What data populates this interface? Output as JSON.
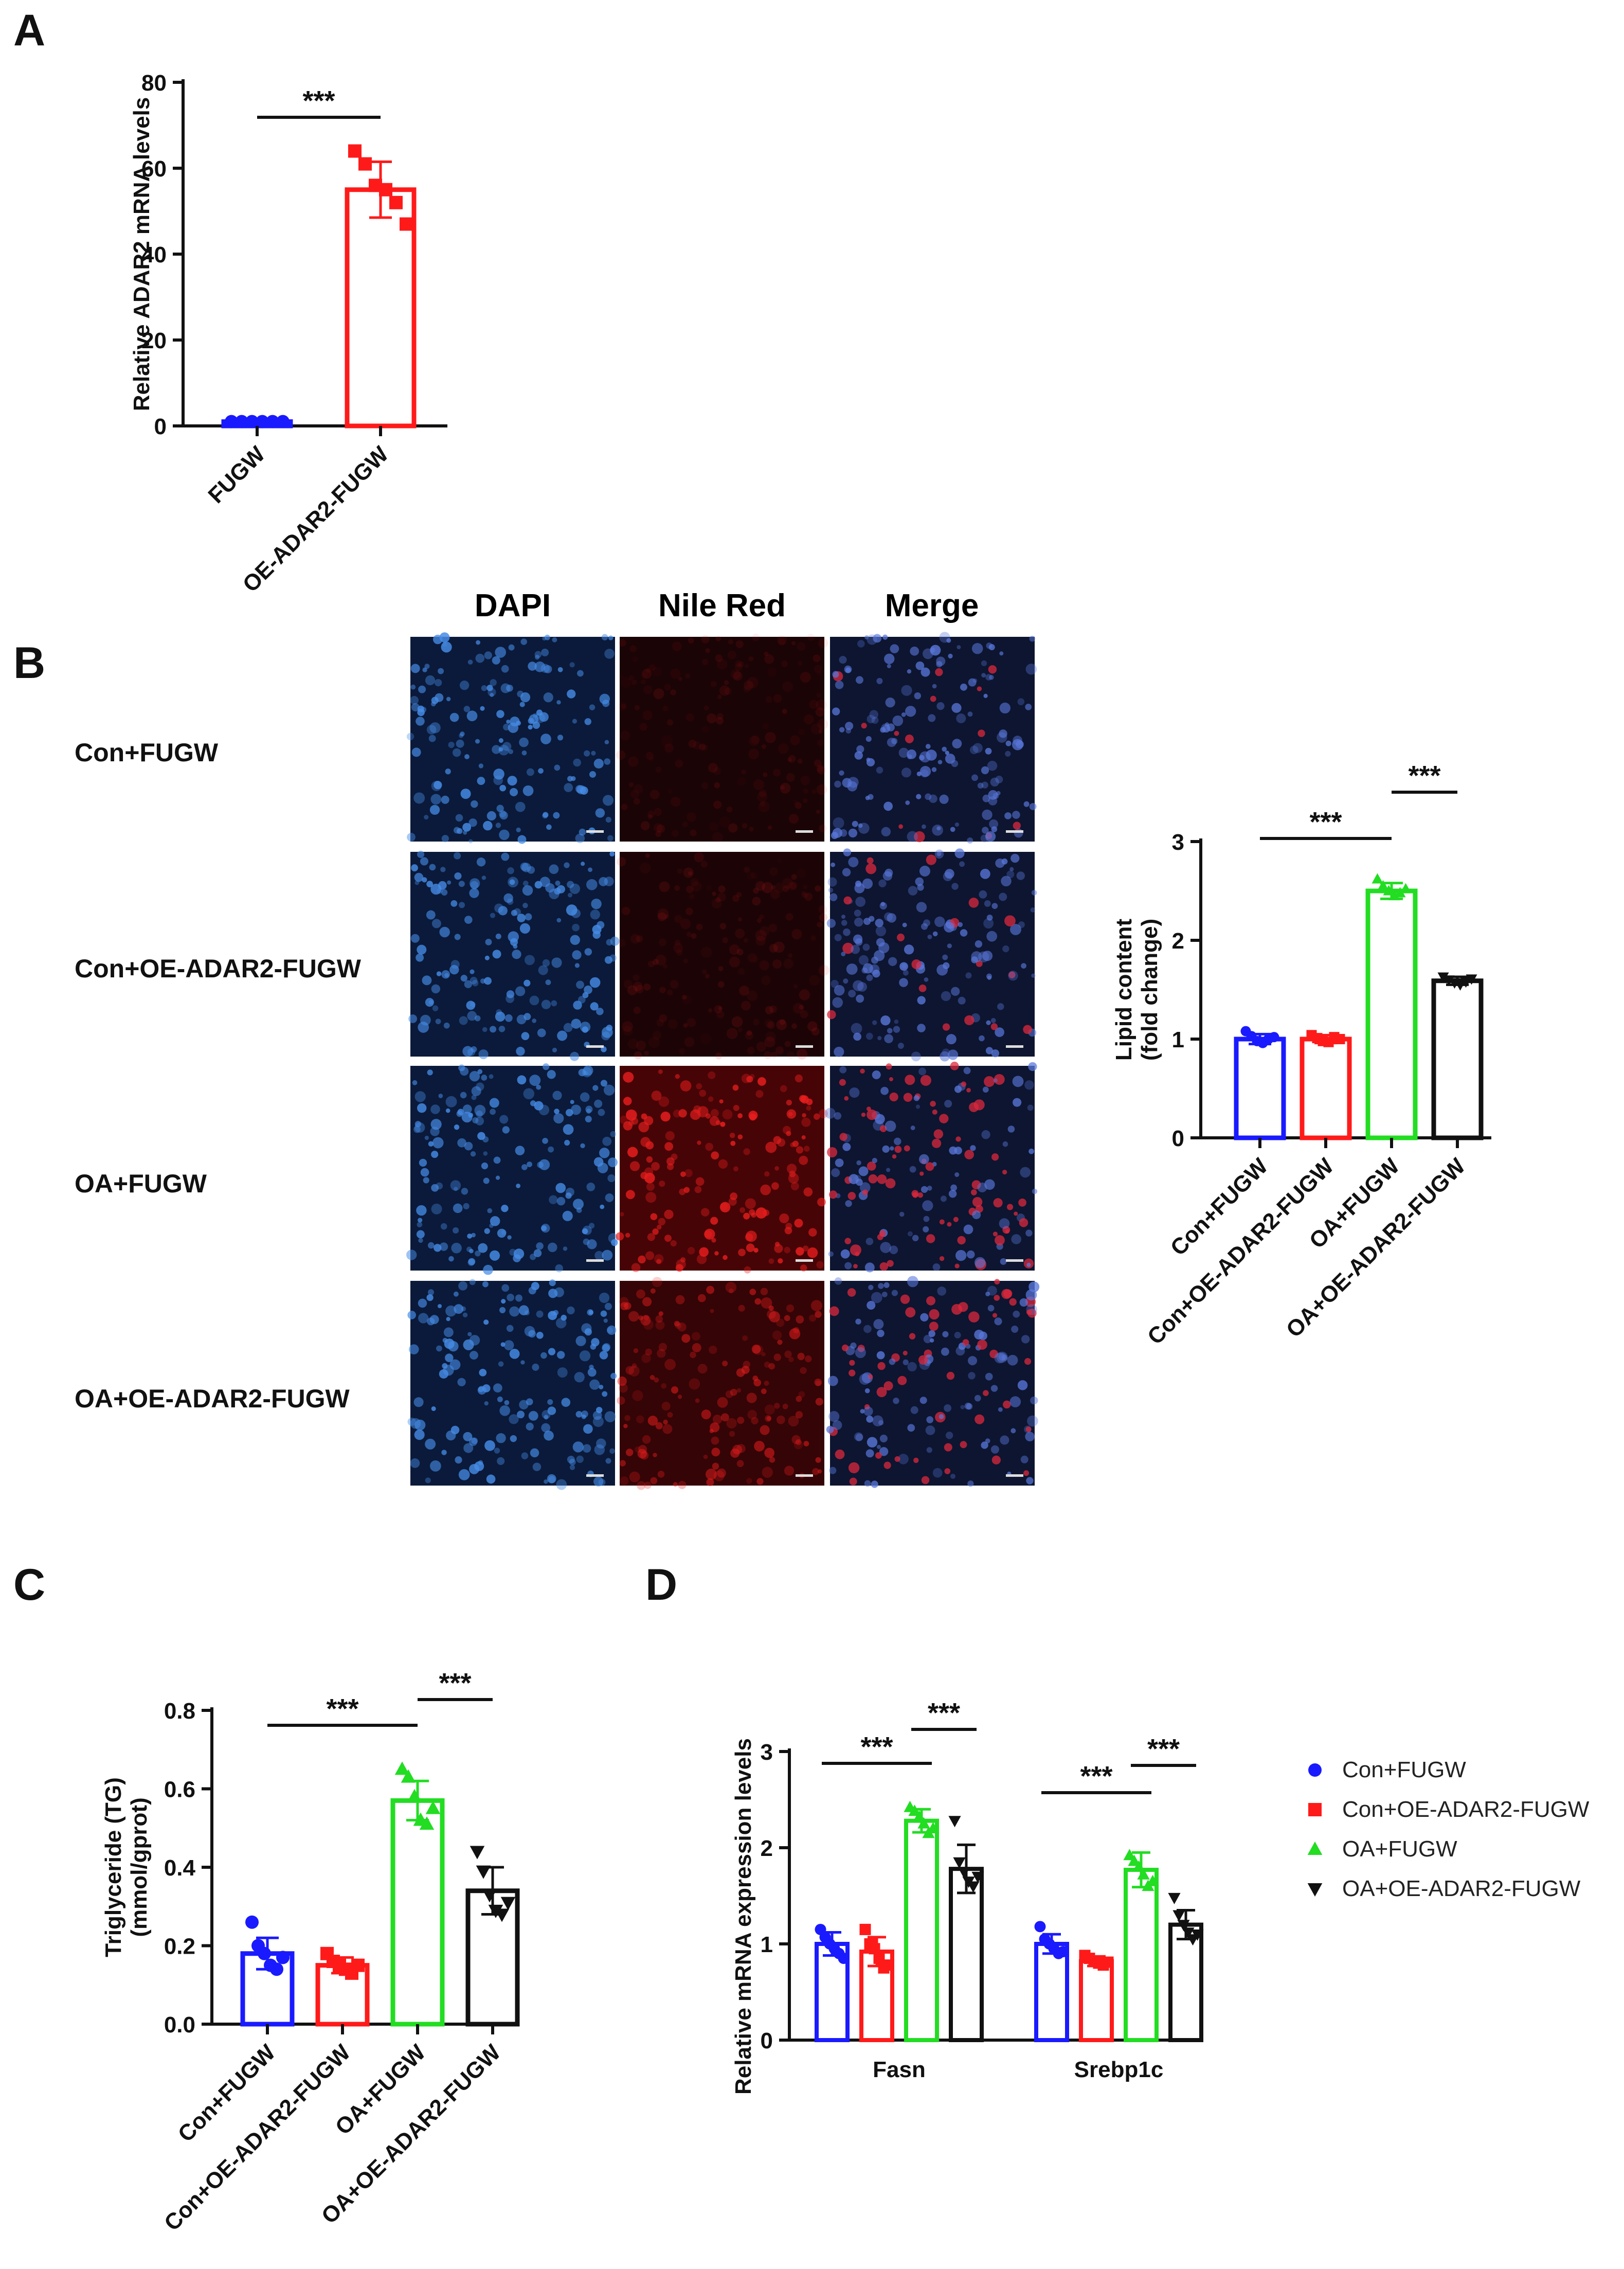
{
  "colors": {
    "con_fugw": "#1a1aff",
    "con_oe": "#ff1a1a",
    "oa_fugw": "#22dd22",
    "oa_oe": "#111111",
    "dapi": "#4a8fdc",
    "nile_red": "#ee1c1c",
    "merge": "#d11818"
  },
  "figure": {
    "panel_labels": [
      "A",
      "B",
      "C",
      "D"
    ],
    "micrograph": {
      "columns": [
        "DAPI",
        "Nile Red",
        "Merge"
      ],
      "rows": [
        "Con+FUGW",
        "Con+OE-ADAR2-FUGW",
        "OA+FUGW",
        "OA+OE-ADAR2-FUGW"
      ],
      "red_intensity": [
        0.12,
        0.14,
        0.85,
        0.55
      ]
    }
  },
  "chart_data": [
    {
      "id": "A",
      "type": "bar",
      "categories": [
        "FUGW",
        "OE-ADAR2-FUGW"
      ],
      "values": [
        1.0,
        55.0
      ],
      "errors": [
        0.2,
        6.5
      ],
      "points": [
        [
          1.0,
          1.0,
          1.0,
          1.0,
          1.0,
          1.0
        ],
        [
          64,
          61,
          56,
          55,
          52,
          47
        ]
      ],
      "colors": [
        "#1a1aff",
        "#ff1a1a"
      ],
      "marker": "circle-square",
      "ylabel": "Relative ADAR2 mRNA levels",
      "ylim": [
        0,
        80
      ],
      "yticks": [
        0,
        20,
        40,
        60,
        80
      ],
      "significance": [
        {
          "from": 0,
          "to": 1,
          "label": "***"
        }
      ]
    },
    {
      "id": "B",
      "type": "bar",
      "categories": [
        "Con+FUGW",
        "Con+OE-ADAR2-FUGW",
        "OA+FUGW",
        "OA+OE-ADAR2-FUGW"
      ],
      "values": [
        1.0,
        1.0,
        2.5,
        1.59
      ],
      "errors": [
        0.05,
        0.04,
        0.08,
        0.04
      ],
      "points": [
        [
          1.08,
          1.03,
          0.98,
          0.96,
          1.0,
          1.02
        ],
        [
          1.04,
          1.01,
          0.98,
          0.97,
          1.02,
          1.0
        ],
        [
          2.62,
          2.55,
          2.5,
          2.45,
          2.48,
          2.52
        ],
        [
          1.63,
          1.6,
          1.57,
          1.55,
          1.58,
          1.61
        ]
      ],
      "colors": [
        "#1a1aff",
        "#ff1a1a",
        "#22dd22",
        "#111111"
      ],
      "ylabel": "Lipid content (fold change)",
      "ylim": [
        0,
        3
      ],
      "yticks": [
        0,
        1,
        2,
        3
      ],
      "significance": [
        {
          "from": 0,
          "to": 2,
          "label": "***"
        },
        {
          "from": 2,
          "to": 3,
          "label": "***"
        }
      ]
    },
    {
      "id": "C",
      "type": "bar",
      "categories": [
        "Con+FUGW",
        "Con+OE-ADAR2-FUGW",
        "OA+FUGW",
        "OA+OE-ADAR2-FUGW"
      ],
      "values": [
        0.18,
        0.15,
        0.57,
        0.34
      ],
      "errors": [
        0.04,
        0.02,
        0.05,
        0.06
      ],
      "points": [
        [
          0.26,
          0.2,
          0.18,
          0.15,
          0.14,
          0.17
        ],
        [
          0.18,
          0.16,
          0.15,
          0.14,
          0.13,
          0.15
        ],
        [
          0.65,
          0.63,
          0.58,
          0.52,
          0.51,
          0.55
        ],
        [
          0.44,
          0.39,
          0.33,
          0.29,
          0.28,
          0.31
        ]
      ],
      "colors": [
        "#1a1aff",
        "#ff1a1a",
        "#22dd22",
        "#111111"
      ],
      "ylabel": "Triglyceride (TG) (mmol/gprot)",
      "ylim": [
        0,
        0.8
      ],
      "yticks": [
        0.0,
        0.2,
        0.4,
        0.6,
        0.8
      ],
      "significance": [
        {
          "from": 0,
          "to": 2,
          "label": "***"
        },
        {
          "from": 2,
          "to": 3,
          "label": "***"
        }
      ]
    },
    {
      "id": "D",
      "type": "bar",
      "categories": [
        "Fasn",
        "Srebp1c"
      ],
      "series": [
        {
          "name": "Con+FUGW",
          "values": [
            1.0,
            1.0
          ],
          "errors": [
            0.12,
            0.1
          ],
          "points": [
            [
              1.15,
              1.07,
              1.0,
              0.95,
              0.9,
              0.85
            ],
            [
              1.18,
              1.05,
              1.0,
              0.95,
              0.9,
              0.92
            ]
          ]
        },
        {
          "name": "Con+OE-ADAR2-FUGW",
          "values": [
            0.92,
            0.82
          ],
          "errors": [
            0.15,
            0.05
          ],
          "points": [
            [
              1.15,
              1.0,
              0.95,
              0.85,
              0.75,
              0.78
            ],
            [
              0.88,
              0.85,
              0.82,
              0.8,
              0.78,
              0.81
            ]
          ]
        },
        {
          "name": "OA+FUGW",
          "values": [
            2.28,
            1.77
          ],
          "errors": [
            0.12,
            0.18
          ],
          "points": [
            [
              2.42,
              2.38,
              2.32,
              2.25,
              2.15,
              2.2
            ],
            [
              1.92,
              1.86,
              1.8,
              1.72,
              1.6,
              1.65
            ]
          ]
        },
        {
          "name": "OA+OE-ADAR2-FUGW",
          "values": [
            1.78,
            1.2
          ],
          "errors": [
            0.25,
            0.15
          ],
          "points": [
            [
              2.28,
              1.85,
              1.75,
              1.65,
              1.6,
              1.7
            ],
            [
              1.48,
              1.3,
              1.2,
              1.12,
              1.05,
              1.1
            ]
          ]
        }
      ],
      "colors": [
        "#1a1aff",
        "#ff1a1a",
        "#22dd22",
        "#111111"
      ],
      "markers": [
        "circle",
        "square",
        "triangle-up",
        "triangle-down"
      ],
      "ylabel": "Relative mRNA expression levels",
      "ylim": [
        0,
        3
      ],
      "yticks": [
        0,
        1,
        2,
        3
      ],
      "legend_position": "right",
      "significance": [
        {
          "group": 0,
          "from": 0,
          "to": 2,
          "label": "***"
        },
        {
          "group": 0,
          "from": 2,
          "to": 3,
          "label": "***"
        },
        {
          "group": 1,
          "from": 0,
          "to": 2,
          "label": "***"
        },
        {
          "group": 1,
          "from": 2,
          "to": 3,
          "label": "***"
        }
      ]
    }
  ]
}
